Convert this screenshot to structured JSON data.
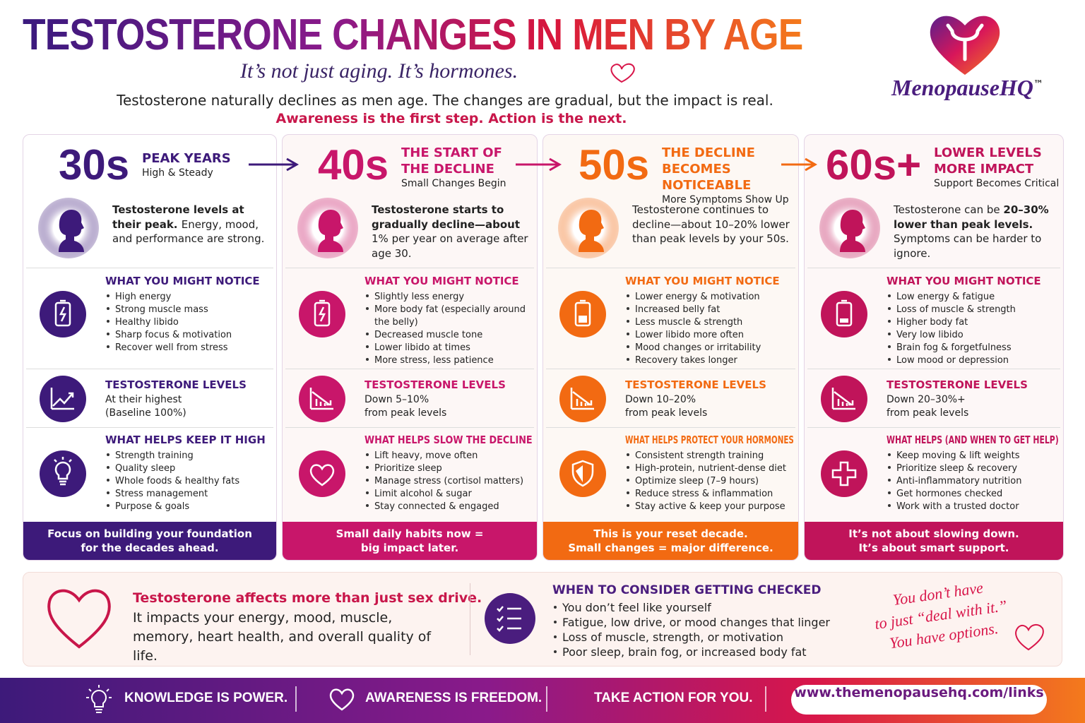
{
  "header": {
    "title": "TESTOSTERONE CHANGES IN MEN BY AGE",
    "subtitle": "It’s not just aging. It’s hormones.",
    "intro": "Testosterone naturally declines as men age. The changes are gradual, but the impact is real.",
    "highlight": "Awareness is the first step. Action is the next.",
    "logo": "MenopauseHQ",
    "logo_mark": "™"
  },
  "columns": [
    {
      "color": "#3d1a7a",
      "age": "30s",
      "heading": "PEAK YEARS",
      "subheading": "High & Steady",
      "summary": [
        {
          "text": "Testosterone levels at their peak. ",
          "bold": true
        },
        {
          "text": "Energy, mood, and performance are strong.",
          "bold": false
        }
      ],
      "notice_title": "WHAT YOU MIGHT NOTICE",
      "notice_items": [
        "High energy",
        "Strong muscle mass",
        "Healthy libido",
        "Sharp focus & motivation",
        "Recover well from stress"
      ],
      "levels_title": "TESTOSTERONE LEVELS",
      "levels_lines": [
        "At their highest",
        "(Baseline 100%)"
      ],
      "helps_title": "WHAT HELPS KEEP IT HIGH",
      "helps_items": [
        "Strength training",
        "Quality sleep",
        "Whole foods & healthy fats",
        "Stress management",
        "Purpose & goals"
      ],
      "footer": [
        "Focus on building your foundation",
        "for the decades ahead."
      ]
    },
    {
      "color": "#c8166a",
      "age": "40s",
      "heading": "THE START OF THE DECLINE",
      "subheading": "Small Changes Begin",
      "summary": [
        {
          "text": "Testosterone starts to gradually decline—about ",
          "bold": true
        },
        {
          "text": "1% per year on average after age 30.",
          "bold": false
        }
      ],
      "notice_title": "WHAT YOU MIGHT NOTICE",
      "notice_items": [
        "Slightly less energy",
        "More body fat (especially around the belly)",
        "Decreased muscle tone",
        "Lower libido at times",
        "More stress, less patience"
      ],
      "levels_title": "TESTOSTERONE LEVELS",
      "levels_lines": [
        "Down 5–10%",
        "from peak levels"
      ],
      "helps_title": "WHAT HELPS SLOW THE DECLINE",
      "helps_items": [
        "Lift heavy, move often",
        "Prioritize sleep",
        "Manage stress (cortisol matters)",
        "Limit alcohol & sugar",
        "Stay connected & engaged"
      ],
      "footer": [
        "Small daily habits now =",
        "big impact later."
      ]
    },
    {
      "color": "#f26a12",
      "age": "50s",
      "heading": "THE DECLINE BECOMES NOTICEABLE",
      "subheading": "More Symptoms Show Up",
      "summary": [
        {
          "text": "Testosterone continues to decline—about 10–20% lower than peak levels by your 50s.",
          "bold": false
        }
      ],
      "notice_title": "WHAT YOU MIGHT NOTICE",
      "notice_items": [
        "Lower energy & motivation",
        "Increased belly fat",
        "Less muscle & strength",
        "Lower libido more often",
        "Mood changes or irritability",
        "Recovery takes longer"
      ],
      "levels_title": "TESTOSTERONE LEVELS",
      "levels_lines": [
        "Down 10–20%",
        "from peak levels"
      ],
      "helps_title": "WHAT HELPS PROTECT YOUR HORMONES",
      "helps_items": [
        "Consistent strength training",
        "High-protein, nutrient-dense diet",
        "Optimize sleep (7–9 hours)",
        "Reduce stress & inflammation",
        "Stay active & keep your purpose"
      ],
      "footer": [
        "This is your reset decade.",
        "Small changes = major difference."
      ]
    },
    {
      "color": "#c0145a",
      "age": "60s+",
      "heading": "LOWER LEVELS MORE IMPACT",
      "subheading": "Support Becomes Critical",
      "summary": [
        {
          "text": "Testosterone can be ",
          "bold": false
        },
        {
          "text": "20–30% lower than peak levels. ",
          "bold": true
        },
        {
          "text": "Symptoms can be harder to ignore.",
          "bold": false
        }
      ],
      "notice_title": "WHAT YOU MIGHT NOTICE",
      "notice_items": [
        "Low energy & fatigue",
        "Loss of muscle & strength",
        "Higher body fat",
        "Very low libido",
        "Brain fog & forgetfulness",
        "Low mood or depression"
      ],
      "levels_title": "TESTOSTERONE LEVELS",
      "levels_lines": [
        "Down 20–30%+",
        "from peak levels"
      ],
      "helps_title": "WHAT HELPS (AND WHEN TO GET HELP)",
      "helps_items": [
        "Keep moving & lift weights",
        "Prioritize sleep & recovery",
        "Anti-inflammatory nutrition",
        "Get hormones checked",
        "Work with a trusted doctor"
      ],
      "footer": [
        "It’s not about slowing down.",
        "It’s about smart support."
      ]
    }
  ],
  "panel": {
    "lead": "Testosterone affects more than just sex drive.",
    "body": "It impacts your energy, mood, muscle, memory, heart health, and overall quality of life.",
    "check_title": "WHEN TO CONSIDER GETTING CHECKED",
    "check_items": [
      "You don’t feel like yourself",
      "Fatigue, low drive, or mood changes that linger",
      "Loss of muscle, strength, or motivation",
      "Poor sleep, brain fog, or increased body fat"
    ],
    "note": [
      "You don’t have",
      "to just “deal with it.”",
      "You have options."
    ]
  },
  "footer": {
    "items": [
      "KNOWLEDGE IS POWER.",
      "AWARENESS IS FREEDOM.",
      "TAKE ACTION FOR YOU."
    ],
    "url": "www.themenopausehq.com/links"
  }
}
